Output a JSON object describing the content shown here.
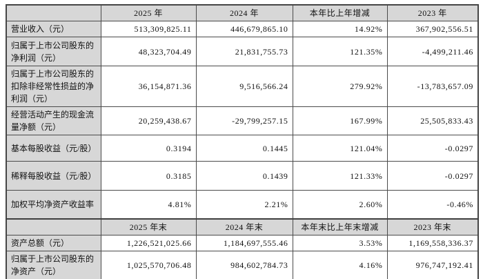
{
  "colors": {
    "header_cell_bg": "#d7d7d7",
    "data_cell_bg": "#ffffff",
    "border": "#4a4a4a",
    "text": "#111111"
  },
  "table": {
    "section1": {
      "columns": [
        "",
        "2025 年",
        "2024 年",
        "本年比上年增减",
        "2023 年"
      ],
      "rows": [
        {
          "label": "营业收入（元）",
          "values": [
            "513,309,825.11",
            "446,679,865.10",
            "14.92%",
            "367,902,556.51"
          ]
        },
        {
          "label": "归属于上市公司股东的净利润（元）",
          "values": [
            "48,323,704.49",
            "21,831,755.73",
            "121.35%",
            "-4,499,211.46"
          ]
        },
        {
          "label": "归属于上市公司股东的扣除非经常性损益的净利润（元）",
          "values": [
            "36,154,871.36",
            "9,516,566.24",
            "279.92%",
            "-13,783,657.09"
          ]
        },
        {
          "label": "经营活动产生的现金流量净额（元）",
          "values": [
            "20,259,438.67",
            "-29,799,257.15",
            "167.99%",
            "25,505,833.43"
          ]
        },
        {
          "label": "基本每股收益（元/股）",
          "values": [
            "0.3194",
            "0.1445",
            "121.04%",
            "-0.0297"
          ]
        },
        {
          "label": "稀释每股收益（元/股）",
          "values": [
            "0.3185",
            "0.1439",
            "121.33%",
            "-0.0297"
          ]
        },
        {
          "label": "加权平均净资产收益率",
          "values": [
            "4.81%",
            "2.21%",
            "2.60%",
            "-0.46%"
          ]
        }
      ]
    },
    "section2": {
      "columns": [
        "",
        "2025 年末",
        "2024 年末",
        "本年末比上年末增减",
        "2023 年末"
      ],
      "rows": [
        {
          "label": "资产总额（元）",
          "values": [
            "1,226,521,025.66",
            "1,184,697,555.46",
            "3.53%",
            "1,169,558,336.37"
          ]
        },
        {
          "label": "归属于上市公司股东的净资产（元）",
          "values": [
            "1,025,570,706.48",
            "984,602,784.73",
            "4.16%",
            "976,747,192.41"
          ]
        }
      ]
    }
  }
}
